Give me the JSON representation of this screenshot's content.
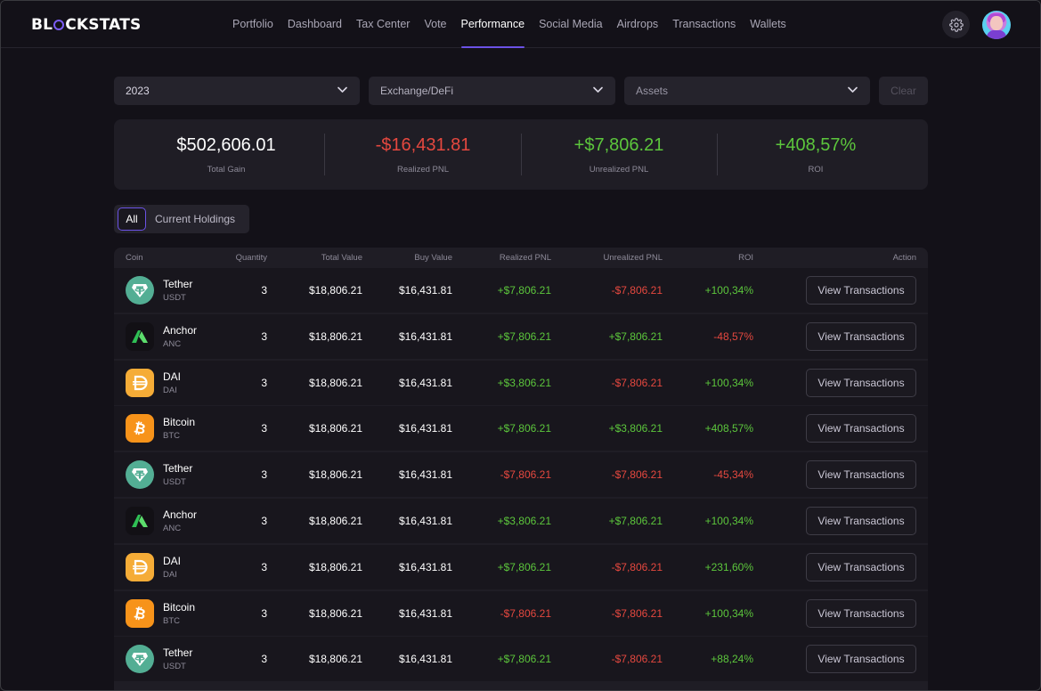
{
  "app": {
    "logo_text_before": "BL",
    "logo_text_after": "CKSTATS"
  },
  "nav": [
    {
      "label": "Portfolio",
      "active": false
    },
    {
      "label": "Dashboard",
      "active": false
    },
    {
      "label": "Tax Center",
      "active": false
    },
    {
      "label": "Vote",
      "active": false
    },
    {
      "label": "Performance",
      "active": true
    },
    {
      "label": "Social Media",
      "active": false
    },
    {
      "label": "Airdrops",
      "active": false
    },
    {
      "label": "Transactions",
      "active": false
    },
    {
      "label": "Wallets",
      "active": false
    }
  ],
  "filters": {
    "year": "2023",
    "source": "Exchange/DeFi",
    "assets_placeholder": "Assets",
    "clear_label": "Clear"
  },
  "stats": [
    {
      "value": "$502,606.01",
      "label": "Total Gain",
      "color": "#ffffff"
    },
    {
      "value": "-$16,431.81",
      "label": "Realized PNL",
      "color": "#e5483f"
    },
    {
      "value": "+$7,806.21",
      "label": "Unrealized PNL",
      "color": "#5cc63c"
    },
    {
      "value": "+408,57%",
      "label": "ROI",
      "color": "#5cc63c"
    }
  ],
  "tabs": {
    "all": "All",
    "holdings": "Current Holdings"
  },
  "table": {
    "headers": {
      "coin": "Coin",
      "quantity": "Quantity",
      "total_value": "Total Value",
      "buy_value": "Buy Value",
      "realized_pnl": "Realized PNL",
      "unrealized_pnl": "Unrealized PNL",
      "roi": "ROI",
      "action": "Action"
    },
    "rows": [
      {
        "name": "Tether",
        "symbol": "USDT",
        "icon": "tether-icon",
        "qty": "3",
        "total": "$18,806.21",
        "buy": "$16,431.81",
        "realized": "+$7,806.21",
        "unrealized": "-$7,806.21",
        "roi": "+100,34%",
        "action": "View Transactions"
      },
      {
        "name": "Anchor",
        "symbol": "ANC",
        "icon": "anchor-icon",
        "qty": "3",
        "total": "$18,806.21",
        "buy": "$16,431.81",
        "realized": "+$7,806.21",
        "unrealized": "+$7,806.21",
        "roi": "-48,57%",
        "action": "View Transactions"
      },
      {
        "name": "DAI",
        "symbol": "DAI",
        "icon": "dai-icon",
        "qty": "3",
        "total": "$18,806.21",
        "buy": "$16,431.81",
        "realized": "+$3,806.21",
        "unrealized": "-$7,806.21",
        "roi": "+100,34%",
        "action": "View Transactions"
      },
      {
        "name": "Bitcoin",
        "symbol": "BTC",
        "icon": "bitcoin-icon",
        "qty": "3",
        "total": "$18,806.21",
        "buy": "$16,431.81",
        "realized": "+$7,806.21",
        "unrealized": "+$3,806.21",
        "roi": "+408,57%",
        "action": "View Transactions"
      },
      {
        "name": "Tether",
        "symbol": "USDT",
        "icon": "tether-icon",
        "qty": "3",
        "total": "$18,806.21",
        "buy": "$16,431.81",
        "realized": "-$7,806.21",
        "unrealized": "-$7,806.21",
        "roi": "-45,34%",
        "action": "View Transactions"
      },
      {
        "name": "Anchor",
        "symbol": "ANC",
        "icon": "anchor-icon",
        "qty": "3",
        "total": "$18,806.21",
        "buy": "$16,431.81",
        "realized": "+$3,806.21",
        "unrealized": "+$7,806.21",
        "roi": "+100,34%",
        "action": "View Transactions"
      },
      {
        "name": "DAI",
        "symbol": "DAI",
        "icon": "dai-icon",
        "qty": "3",
        "total": "$18,806.21",
        "buy": "$16,431.81",
        "realized": "+$7,806.21",
        "unrealized": "-$7,806.21",
        "roi": "+231,60%",
        "action": "View Transactions"
      },
      {
        "name": "Bitcoin",
        "symbol": "BTC",
        "icon": "bitcoin-icon",
        "qty": "3",
        "total": "$18,806.21",
        "buy": "$16,431.81",
        "realized": "-$7,806.21",
        "unrealized": "-$7,806.21",
        "roi": "+100,34%",
        "action": "View Transactions"
      },
      {
        "name": "Tether",
        "symbol": "USDT",
        "icon": "tether-icon",
        "qty": "3",
        "total": "$18,806.21",
        "buy": "$16,431.81",
        "realized": "+$7,806.21",
        "unrealized": "-$7,806.21",
        "roi": "+88,24%",
        "action": "View Transactions"
      }
    ]
  },
  "colors": {
    "accent": "#6b52e6",
    "positive": "#5cc63c",
    "negative": "#e5483f",
    "tether": "#53ae94",
    "dai": "#f5ac37",
    "bitcoin": "#f7931a",
    "anchor": "#3dd36a"
  }
}
